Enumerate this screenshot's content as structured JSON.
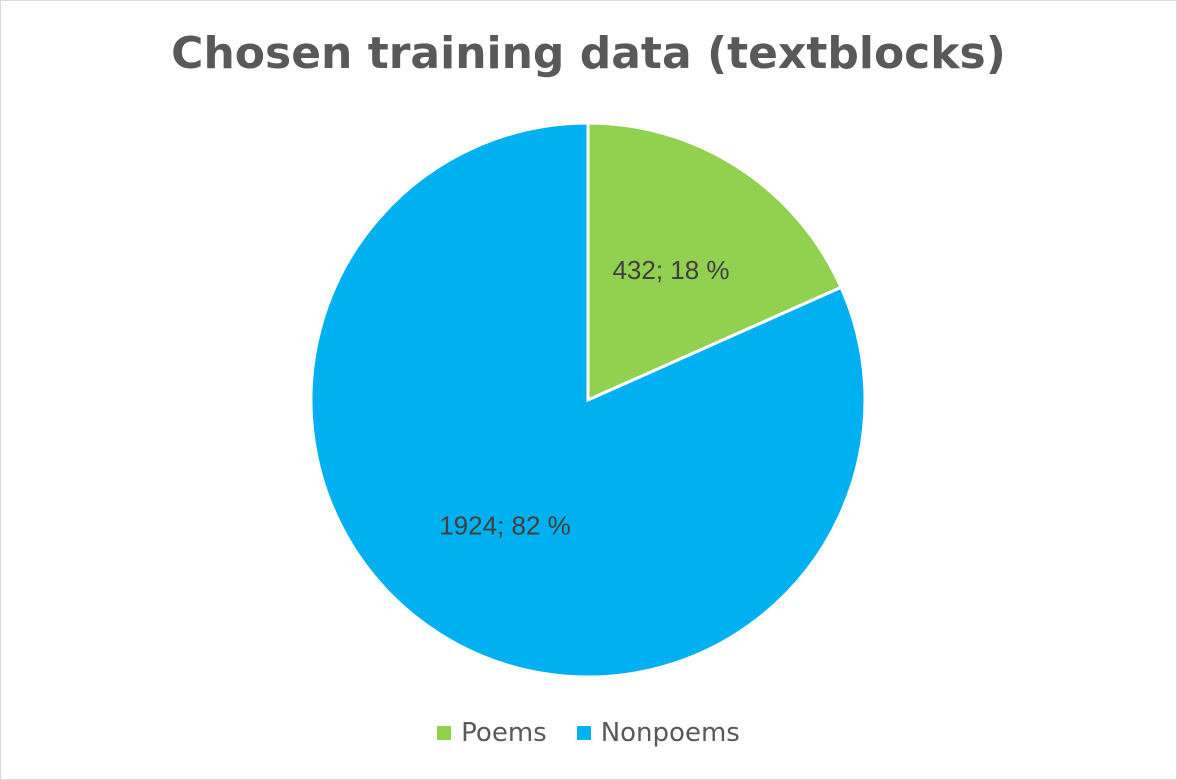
{
  "chart_data": {
    "type": "pie",
    "title": "Chosen training data (textblocks)",
    "categories": [
      "Poems",
      "Nonpoems"
    ],
    "values": [
      432,
      1924
    ],
    "percent_labels": [
      "18 %",
      "82 %"
    ],
    "data_labels": [
      "432; 18 %",
      "1924; 82 %"
    ],
    "colors": [
      "#92d050",
      "#00b0f0"
    ],
    "legend_position": "bottom",
    "start_angle": "12 o'clock",
    "direction": "clockwise"
  }
}
